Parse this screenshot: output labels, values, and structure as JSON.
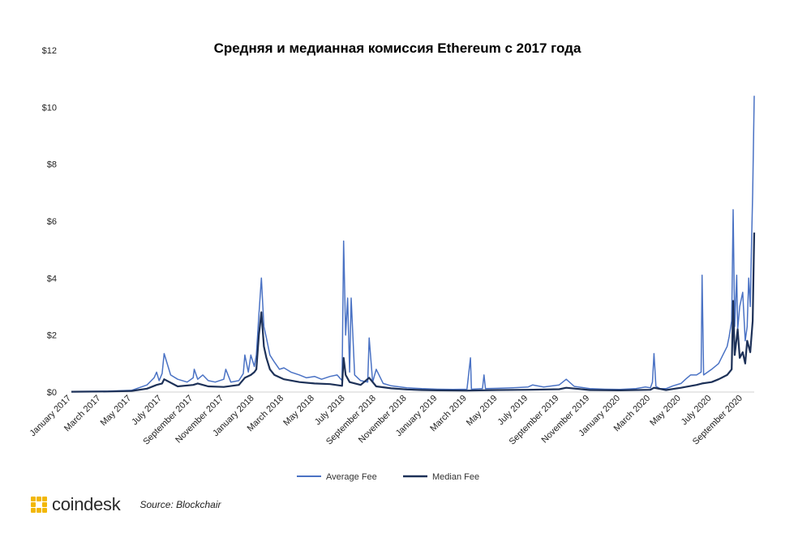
{
  "chart_data": {
    "type": "line",
    "title": "Средняя и медианная комиссия Ethereum с 2017 года",
    "xlabel": "",
    "ylabel": "",
    "ylim": [
      0,
      12
    ],
    "y_ticks": [
      "$0",
      "$2",
      "$4",
      "$6",
      "$8",
      "$10",
      "$12"
    ],
    "y_tick_values": [
      0,
      2,
      4,
      6,
      8,
      10,
      12
    ],
    "x_ticks": [
      "January 2017",
      "March 2017",
      "May 2017",
      "July 2017",
      "September 2017",
      "November 2017",
      "January 2018",
      "March 2018",
      "May 2018",
      "July 2018",
      "September 2018",
      "November 2018",
      "January 2019",
      "March 2019",
      "May 2019",
      "July 2019",
      "September 2019",
      "November 2019",
      "January 2020",
      "March 2020",
      "May 2020",
      "July 2020",
      "September 2020"
    ],
    "x_tick_dates": [
      "2017-01-01",
      "2017-03-01",
      "2017-05-01",
      "2017-07-01",
      "2017-09-01",
      "2017-11-01",
      "2018-01-01",
      "2018-03-01",
      "2018-05-01",
      "2018-07-01",
      "2018-09-01",
      "2018-11-01",
      "2019-01-01",
      "2019-03-01",
      "2019-05-01",
      "2019-07-01",
      "2019-09-01",
      "2019-11-01",
      "2020-01-01",
      "2020-03-01",
      "2020-05-01",
      "2020-07-01",
      "2020-09-01"
    ],
    "x_range": [
      "2017-01-01",
      "2020-09-24"
    ],
    "grid": false,
    "legend_position": "bottom-center",
    "series": [
      {
        "name": "Average Fee",
        "color": "#4a72c4",
        "x": [
          "2017-01-01",
          "2017-03-15",
          "2017-05-01",
          "2017-06-01",
          "2017-06-15",
          "2017-06-20",
          "2017-06-25",
          "2017-07-01",
          "2017-07-05",
          "2017-07-18",
          "2017-08-01",
          "2017-08-20",
          "2017-09-01",
          "2017-09-03",
          "2017-09-10",
          "2017-09-20",
          "2017-10-01",
          "2017-10-15",
          "2017-11-01",
          "2017-11-05",
          "2017-11-15",
          "2017-12-01",
          "2017-12-10",
          "2017-12-13",
          "2017-12-20",
          "2017-12-25",
          "2018-01-01",
          "2018-01-05",
          "2018-01-10",
          "2018-01-15",
          "2018-01-20",
          "2018-01-25",
          "2018-02-01",
          "2018-02-10",
          "2018-02-20",
          "2018-03-01",
          "2018-03-15",
          "2018-04-01",
          "2018-04-15",
          "2018-05-01",
          "2018-05-15",
          "2018-06-01",
          "2018-06-15",
          "2018-06-25",
          "2018-06-28",
          "2018-07-02",
          "2018-07-06",
          "2018-07-10",
          "2018-07-13",
          "2018-07-20",
          "2018-08-01",
          "2018-08-15",
          "2018-08-18",
          "2018-08-25",
          "2018-09-01",
          "2018-09-15",
          "2018-10-01",
          "2018-11-01",
          "2018-12-01",
          "2019-01-01",
          "2019-02-01",
          "2019-03-01",
          "2019-03-08",
          "2019-03-10",
          "2019-04-01",
          "2019-04-04",
          "2019-04-07",
          "2019-05-01",
          "2019-06-01",
          "2019-07-01",
          "2019-07-10",
          "2019-08-01",
          "2019-09-01",
          "2019-09-15",
          "2019-10-01",
          "2019-11-01",
          "2019-12-01",
          "2020-01-01",
          "2020-02-01",
          "2020-02-20",
          "2020-03-01",
          "2020-03-05",
          "2020-03-08",
          "2020-03-12",
          "2020-03-20",
          "2020-04-01",
          "2020-04-15",
          "2020-05-01",
          "2020-05-10",
          "2020-05-20",
          "2020-06-01",
          "2020-06-10",
          "2020-06-12",
          "2020-06-15",
          "2020-07-01",
          "2020-07-15",
          "2020-08-01",
          "2020-08-05",
          "2020-08-10",
          "2020-08-13",
          "2020-08-16",
          "2020-08-20",
          "2020-08-22",
          "2020-08-26",
          "2020-09-01",
          "2020-09-06",
          "2020-09-10",
          "2020-09-13",
          "2020-09-16",
          "2020-09-19",
          "2020-09-21",
          "2020-09-24"
        ],
        "y": [
          0.02,
          0.03,
          0.06,
          0.25,
          0.5,
          0.7,
          0.4,
          0.65,
          1.35,
          0.6,
          0.45,
          0.35,
          0.5,
          0.8,
          0.45,
          0.6,
          0.4,
          0.35,
          0.45,
          0.8,
          0.35,
          0.4,
          0.65,
          1.3,
          0.7,
          1.3,
          0.9,
          1.3,
          2.7,
          4.0,
          2.3,
          1.9,
          1.3,
          1.05,
          0.8,
          0.85,
          0.7,
          0.6,
          0.5,
          0.55,
          0.45,
          0.55,
          0.6,
          0.4,
          5.3,
          2.0,
          3.3,
          0.7,
          3.3,
          0.6,
          0.4,
          0.35,
          1.9,
          0.35,
          0.8,
          0.3,
          0.22,
          0.15,
          0.12,
          0.1,
          0.09,
          0.1,
          1.2,
          0.1,
          0.12,
          0.6,
          0.12,
          0.13,
          0.15,
          0.18,
          0.25,
          0.18,
          0.25,
          0.45,
          0.2,
          0.12,
          0.1,
          0.09,
          0.12,
          0.18,
          0.15,
          0.35,
          1.35,
          0.2,
          0.12,
          0.12,
          0.22,
          0.3,
          0.45,
          0.6,
          0.6,
          0.7,
          4.1,
          0.6,
          0.8,
          1.0,
          1.6,
          1.95,
          2.5,
          6.4,
          2.3,
          4.1,
          2.2,
          3.0,
          3.5,
          1.8,
          2.3,
          4.0,
          3.0,
          5.5,
          7.0,
          10.4
        ]
      },
      {
        "name": "Median Fee",
        "color": "#1d3158",
        "x": [
          "2017-01-01",
          "2017-03-15",
          "2017-05-01",
          "2017-06-01",
          "2017-06-20",
          "2017-07-01",
          "2017-07-05",
          "2017-08-01",
          "2017-09-01",
          "2017-09-10",
          "2017-10-01",
          "2017-11-01",
          "2017-12-01",
          "2017-12-13",
          "2017-12-25",
          "2018-01-01",
          "2018-01-05",
          "2018-01-10",
          "2018-01-15",
          "2018-01-20",
          "2018-01-25",
          "2018-02-01",
          "2018-02-10",
          "2018-03-01",
          "2018-04-01",
          "2018-05-01",
          "2018-06-01",
          "2018-06-25",
          "2018-06-28",
          "2018-07-02",
          "2018-07-10",
          "2018-08-01",
          "2018-08-18",
          "2018-09-01",
          "2018-10-01",
          "2018-11-01",
          "2018-12-01",
          "2019-01-01",
          "2019-03-01",
          "2019-05-01",
          "2019-07-01",
          "2019-09-01",
          "2019-09-15",
          "2019-11-01",
          "2020-01-01",
          "2020-03-01",
          "2020-03-08",
          "2020-04-01",
          "2020-05-01",
          "2020-06-01",
          "2020-06-12",
          "2020-07-01",
          "2020-07-15",
          "2020-08-01",
          "2020-08-10",
          "2020-08-13",
          "2020-08-16",
          "2020-08-22",
          "2020-08-26",
          "2020-09-01",
          "2020-09-06",
          "2020-09-10",
          "2020-09-16",
          "2020-09-21",
          "2020-09-24"
        ],
        "y": [
          0.01,
          0.02,
          0.04,
          0.12,
          0.25,
          0.3,
          0.45,
          0.2,
          0.25,
          0.3,
          0.2,
          0.18,
          0.25,
          0.5,
          0.6,
          0.7,
          0.8,
          2.0,
          2.8,
          1.6,
          1.2,
          0.8,
          0.6,
          0.45,
          0.35,
          0.3,
          0.28,
          0.22,
          1.2,
          0.6,
          0.35,
          0.25,
          0.5,
          0.2,
          0.13,
          0.09,
          0.07,
          0.06,
          0.05,
          0.07,
          0.08,
          0.1,
          0.15,
          0.07,
          0.06,
          0.08,
          0.15,
          0.07,
          0.15,
          0.25,
          0.3,
          0.35,
          0.45,
          0.6,
          0.8,
          3.2,
          1.3,
          2.2,
          1.2,
          1.4,
          1.0,
          1.8,
          1.4,
          2.5,
          5.6
        ]
      }
    ]
  },
  "footer": {
    "brand": "coindesk",
    "source": "Source: Blockchair"
  }
}
